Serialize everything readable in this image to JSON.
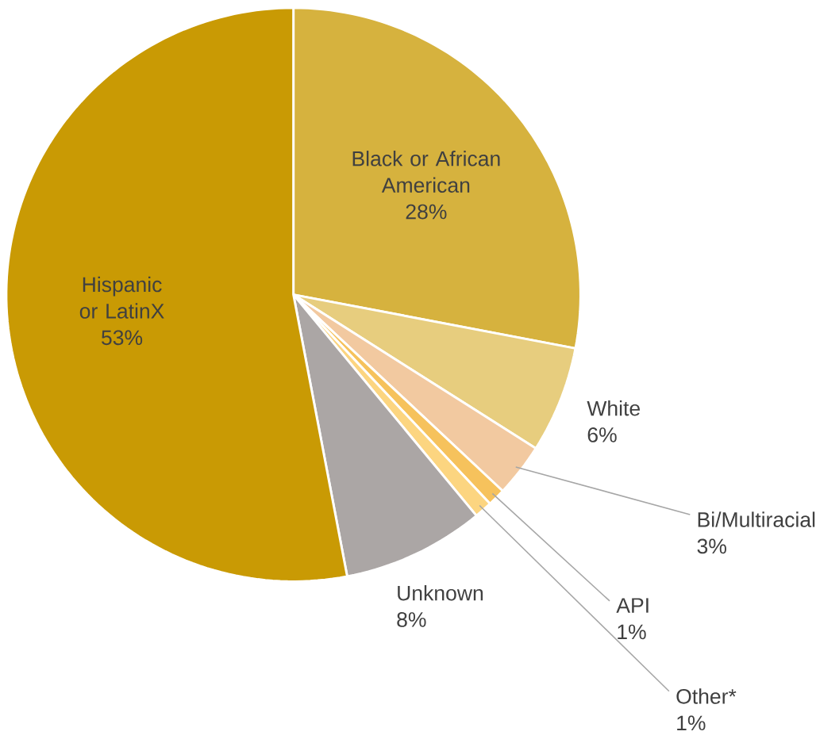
{
  "chart_data": {
    "type": "pie",
    "categories": [
      "Black or African American",
      "White",
      "Bi/Multiracial",
      "API",
      "Other*",
      "Unknown",
      "Hispanic or LatinX"
    ],
    "values": [
      28,
      6,
      3,
      1,
      1,
      8,
      53
    ],
    "value_labels": [
      "28%",
      "6%",
      "3%",
      "1%",
      "1%",
      "8%",
      "53%"
    ],
    "colors": [
      "#d6b23e",
      "#e7cd7e",
      "#f2c9a0",
      "#f6c25c",
      "#fcd580",
      "#aba6a5",
      "#c99a04"
    ]
  }
}
